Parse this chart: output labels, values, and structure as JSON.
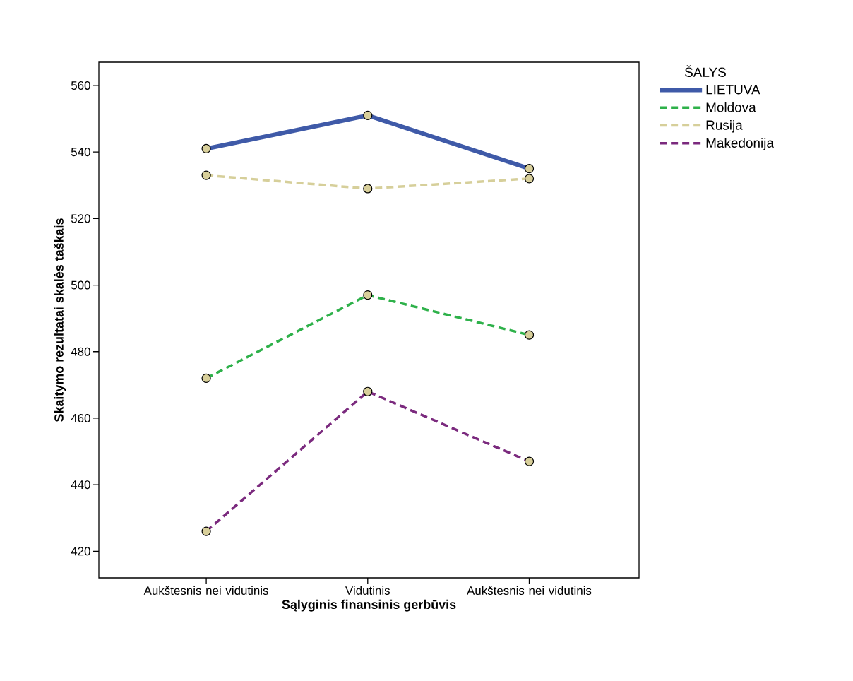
{
  "chart_data": {
    "type": "line",
    "xlabel": "Sąlyginis finansinis gerbūvis",
    "ylabel": "Skaitymo rezultatai skalės taškais",
    "legend_title": "ŠALYS",
    "categories": [
      "Aukštesnis nei vidutinis",
      "Vidutinis",
      "Aukštesnis nei vidutinis"
    ],
    "series": [
      {
        "name": "LIETUVA",
        "color": "#3f5aa8",
        "line_style": "solid",
        "values": [
          541,
          551,
          535
        ]
      },
      {
        "name": "Moldova",
        "color": "#2eb14a",
        "line_style": "dashed",
        "values": [
          472,
          497,
          485
        ]
      },
      {
        "name": "Rusija",
        "color": "#d6cf9a",
        "line_style": "dashed",
        "values": [
          533,
          529,
          532
        ]
      },
      {
        "name": "Makedonija",
        "color": "#7b2a7e",
        "line_style": "dashed",
        "values": [
          426,
          468,
          447
        ]
      }
    ],
    "ylim": [
      412,
      567
    ],
    "yticks": [
      420,
      440,
      460,
      480,
      500,
      520,
      540,
      560
    ],
    "marker": "circle",
    "grid": false,
    "legend": "right"
  }
}
